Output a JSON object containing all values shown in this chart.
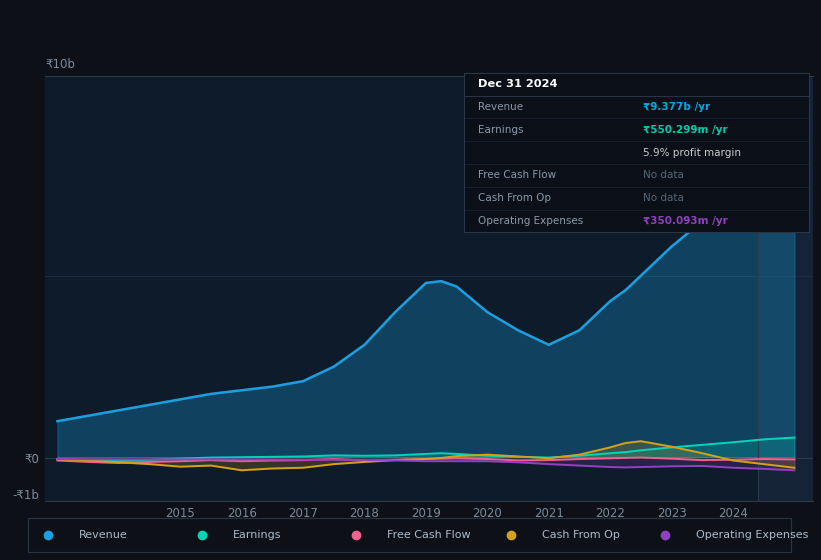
{
  "bg_color": "#0d1117",
  "chart_bg": "#0d1b2a",
  "grid_color": "#1e2d3d",
  "years": [
    2013.0,
    2013.5,
    2014.0,
    2014.5,
    2015.0,
    2015.5,
    2016.0,
    2016.5,
    2017.0,
    2017.5,
    2018.0,
    2018.5,
    2019.0,
    2019.25,
    2019.5,
    2020.0,
    2020.5,
    2021.0,
    2021.5,
    2022.0,
    2022.25,
    2022.5,
    2023.0,
    2023.5,
    2024.0,
    2024.5,
    2025.0
  ],
  "revenue": [
    1.0,
    1.15,
    1.3,
    1.45,
    1.6,
    1.75,
    1.85,
    1.95,
    2.1,
    2.5,
    3.1,
    4.0,
    4.8,
    4.85,
    4.7,
    4.0,
    3.5,
    3.1,
    3.5,
    4.3,
    4.6,
    5.0,
    5.8,
    6.5,
    7.2,
    8.5,
    9.377
  ],
  "earnings": [
    -0.05,
    -0.07,
    -0.1,
    -0.06,
    -0.03,
    0.0,
    0.01,
    0.02,
    0.03,
    0.06,
    0.05,
    0.06,
    0.1,
    0.12,
    0.1,
    0.05,
    0.02,
    0.0,
    0.05,
    0.12,
    0.15,
    0.2,
    0.28,
    0.35,
    0.42,
    0.5,
    0.55
  ],
  "free_cash_flow": [
    -0.08,
    -0.12,
    -0.15,
    -0.12,
    -0.1,
    -0.07,
    -0.1,
    -0.08,
    -0.07,
    -0.04,
    -0.08,
    -0.06,
    -0.04,
    -0.03,
    -0.02,
    -0.04,
    -0.08,
    -0.07,
    -0.04,
    -0.02,
    -0.01,
    0.0,
    -0.03,
    -0.07,
    -0.06,
    -0.04,
    -0.05
  ],
  "cash_from_op": [
    -0.04,
    -0.08,
    -0.13,
    -0.18,
    -0.25,
    -0.22,
    -0.35,
    -0.3,
    -0.28,
    -0.18,
    -0.12,
    -0.07,
    -0.04,
    -0.01,
    0.04,
    0.08,
    0.03,
    -0.02,
    0.08,
    0.28,
    0.4,
    0.45,
    0.3,
    0.12,
    -0.08,
    -0.18,
    -0.28
  ],
  "op_expenses": [
    -0.04,
    -0.045,
    -0.05,
    -0.05,
    -0.05,
    -0.05,
    -0.055,
    -0.055,
    -0.06,
    -0.06,
    -0.065,
    -0.08,
    -0.1,
    -0.1,
    -0.1,
    -0.1,
    -0.13,
    -0.18,
    -0.22,
    -0.26,
    -0.27,
    -0.26,
    -0.24,
    -0.23,
    -0.28,
    -0.31,
    -0.35
  ],
  "revenue_color": "#1a9fe0",
  "earnings_color": "#00d4b8",
  "free_cash_flow_color": "#f06090",
  "cash_from_op_color": "#d4a017",
  "op_expenses_color": "#9040c0",
  "ylim": [
    -1.2,
    10.5
  ],
  "y0_pos": 0.0,
  "y_minus1b": -1.0,
  "xticks": [
    2015,
    2016,
    2017,
    2018,
    2019,
    2020,
    2021,
    2022,
    2023,
    2024
  ],
  "xlim": [
    2012.8,
    2025.3
  ],
  "shade_start": 2024.4,
  "legend_items": [
    {
      "label": "Revenue",
      "color": "#1a9fe0"
    },
    {
      "label": "Earnings",
      "color": "#00d4b8"
    },
    {
      "label": "Free Cash Flow",
      "color": "#f06090"
    },
    {
      "label": "Cash From Op",
      "color": "#d4a017"
    },
    {
      "label": "Operating Expenses",
      "color": "#9040c0"
    }
  ],
  "info_box": {
    "date": "Dec 31 2024",
    "date_color": "#ffffff",
    "rows": [
      {
        "label": "Revenue",
        "value": "₹9.377b /yr",
        "value_color": "#00aadd",
        "bold": true
      },
      {
        "label": "Earnings",
        "value": "₹550.299m /yr",
        "value_color": "#00ccaa",
        "bold": true
      },
      {
        "label": "",
        "value": "5.9% profit margin",
        "value_color": "#cccccc",
        "bold": false
      },
      {
        "label": "Free Cash Flow",
        "value": "No data",
        "value_color": "#556677",
        "bold": false
      },
      {
        "label": "Cash From Op",
        "value": "No data",
        "value_color": "#556677",
        "bold": false
      },
      {
        "label": "Operating Expenses",
        "value": "₹350.093m /yr",
        "value_color": "#9040c0",
        "bold": true
      }
    ],
    "label_color": "#8899aa",
    "bg_color": "#0a0f18",
    "border_color": "#2a3545",
    "divider_color": "#1a2535"
  }
}
